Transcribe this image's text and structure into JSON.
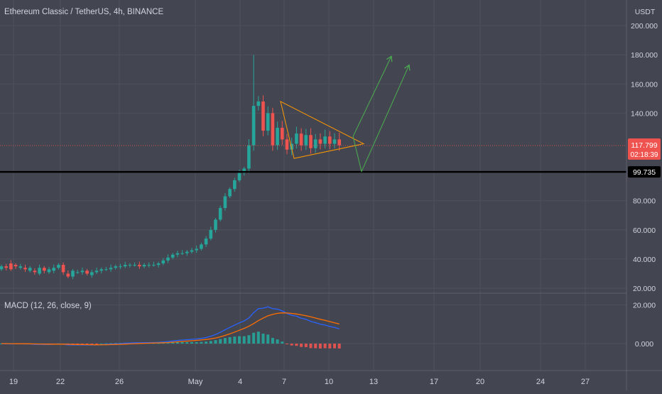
{
  "chart_data": {
    "type": "candlestick",
    "title": "Ethereum Classic / TetherUS, 4h, BINANCE",
    "currency": "USDT",
    "x_ticks": [
      "19",
      "22",
      "26",
      "May",
      "4",
      "7",
      "10",
      "13",
      "17",
      "20",
      "24",
      "27"
    ],
    "price_axis": {
      "ticks": [
        "200.000",
        "180.000",
        "160.000",
        "140.000",
        "100.000",
        "80.000",
        "60.000",
        "40.000",
        "20.000"
      ],
      "ylim": [
        16,
        215
      ]
    },
    "last_price": {
      "value": 117.799,
      "label": "117.799",
      "countdown": "02:18:39",
      "color": "#ef5350"
    },
    "horizontal_level": {
      "value": 99.735,
      "label": "99.735"
    },
    "ohlc_path": [
      [
        33,
        35
      ],
      [
        35,
        34
      ],
      [
        37,
        33
      ],
      [
        36,
        35
      ],
      [
        34,
        35
      ],
      [
        34,
        33
      ],
      [
        32,
        34
      ],
      [
        32,
        31
      ],
      [
        30,
        34
      ],
      [
        34,
        32
      ],
      [
        31,
        33
      ],
      [
        32,
        34
      ],
      [
        34,
        36
      ],
      [
        36,
        31
      ],
      [
        30,
        28
      ],
      [
        28,
        32
      ],
      [
        31,
        31
      ],
      [
        31,
        32
      ],
      [
        32,
        30
      ],
      [
        29,
        31
      ],
      [
        31,
        32
      ],
      [
        32,
        33
      ],
      [
        33,
        33
      ],
      [
        33,
        34
      ],
      [
        34,
        35
      ],
      [
        35,
        35
      ],
      [
        35,
        36
      ],
      [
        36,
        36
      ],
      [
        36,
        36
      ],
      [
        36,
        35
      ],
      [
        35,
        36
      ],
      [
        36,
        36
      ],
      [
        36,
        36
      ],
      [
        36,
        37
      ],
      [
        37,
        39
      ],
      [
        39,
        41
      ],
      [
        41,
        43
      ],
      [
        43,
        44
      ],
      [
        44,
        44
      ],
      [
        44,
        45
      ],
      [
        45,
        46
      ],
      [
        46,
        47
      ],
      [
        47,
        50
      ],
      [
        50,
        54
      ],
      [
        54,
        60
      ],
      [
        60,
        67
      ],
      [
        67,
        75
      ],
      [
        75,
        83
      ],
      [
        83,
        88
      ],
      [
        88,
        94
      ],
      [
        94,
        99
      ],
      [
        99,
        102
      ],
      [
        102,
        118
      ],
      [
        118,
        145
      ],
      [
        145,
        148
      ],
      [
        148,
        128
      ],
      [
        128,
        140
      ],
      [
        140,
        118
      ],
      [
        118,
        130
      ],
      [
        130,
        122
      ],
      [
        122,
        115
      ],
      [
        115,
        119
      ],
      [
        119,
        126
      ],
      [
        126,
        118
      ],
      [
        118,
        125
      ],
      [
        125,
        116
      ],
      [
        116,
        122
      ],
      [
        122,
        119
      ],
      [
        119,
        124
      ],
      [
        124,
        119
      ],
      [
        119,
        122
      ],
      [
        122,
        118
      ]
    ],
    "macd": {
      "label": "MACD (12, 26, close, 9)",
      "ticks": [
        "20.000",
        "0.000"
      ],
      "ylim": [
        -6,
        22
      ],
      "macd_color": "#2962ff",
      "signal_color": "#ff6d00",
      "hist_up_color": "#26a69a",
      "hist_down_color": "#ef5350"
    },
    "annotations": {
      "triangle_color": "#ff9800",
      "arrow_color": "#4caf50"
    },
    "colors": {
      "up": "#26a69a",
      "down": "#ef5350",
      "background": "#434651"
    }
  }
}
